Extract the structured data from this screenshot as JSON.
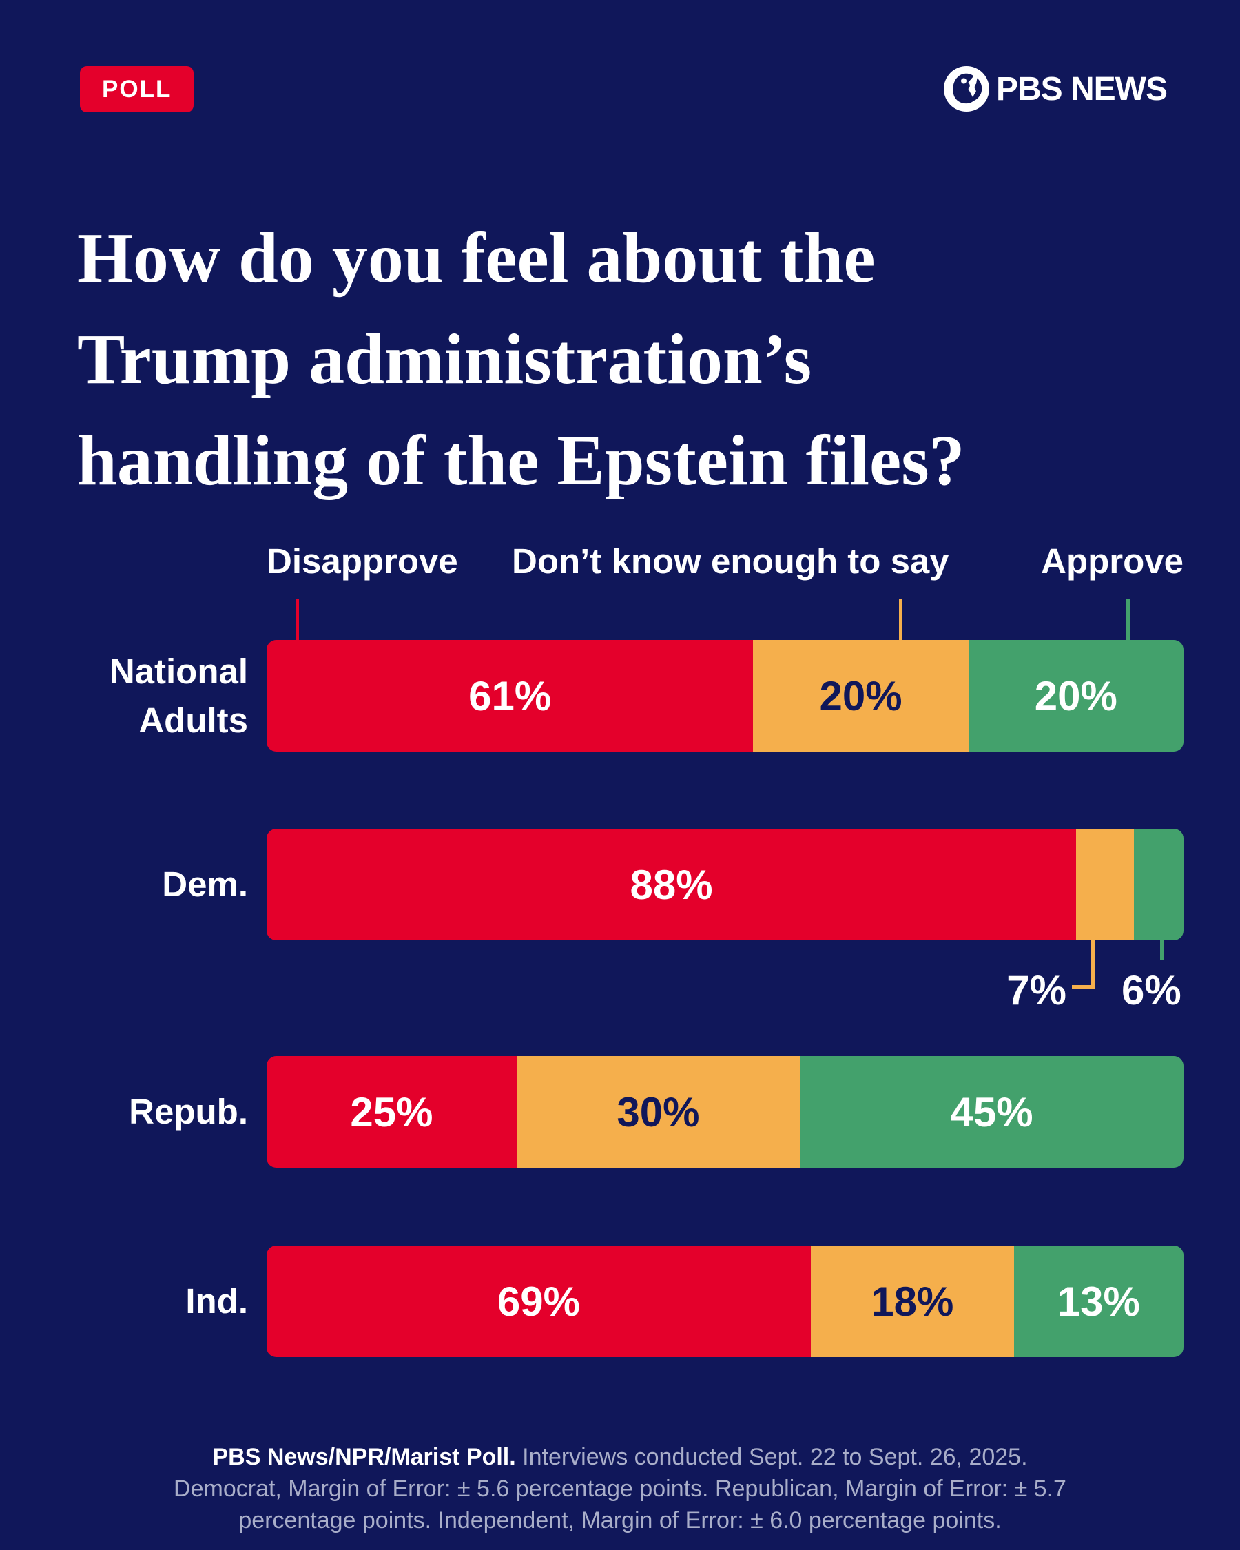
{
  "badge": {
    "label": "POLL",
    "color": "#E4002B"
  },
  "brand": {
    "name": "PBS NEWS"
  },
  "title_lines": [
    "How do you feel about the",
    "Trump administration’s",
    "handling of the Epstein files?"
  ],
  "colors": {
    "background": "#10175A",
    "disapprove_red": "#E4002B",
    "dontknow_orange": "#F5AF4C",
    "approve_green": "#43A16C",
    "text_white": "#FFFFFF",
    "text_navy": "#10175A",
    "footer_muted": "#A9AEC9"
  },
  "legend": [
    {
      "label": "Disapprove",
      "color": "#E4002B"
    },
    {
      "label": "Don’t know enough to say",
      "color": "#F5AF4C"
    },
    {
      "label": "Approve",
      "color": "#43A16C"
    }
  ],
  "chart_data": {
    "type": "bar",
    "orientation": "horizontal-stacked",
    "title": "How do you feel about the Trump administration’s handling of the Epstein files?",
    "categories": [
      "National Adults",
      "Dem.",
      "Repub.",
      "Ind."
    ],
    "series": [
      {
        "name": "Disapprove",
        "color": "#E4002B",
        "label_color": "#FFFFFF",
        "values": [
          61,
          88,
          25,
          69
        ]
      },
      {
        "name": "Don’t know enough to say",
        "color": "#F5AF4C",
        "label_color": "#10175A",
        "values": [
          20,
          7,
          30,
          18
        ]
      },
      {
        "name": "Approve",
        "color": "#43A16C",
        "label_color": "#FFFFFF",
        "values": [
          20,
          6,
          45,
          13
        ]
      }
    ],
    "value_format": "percent",
    "xlim": [
      0,
      100
    ],
    "legend_position": "top",
    "grid": false
  },
  "callouts": [
    {
      "category": "Dem.",
      "series": "Don’t know enough to say",
      "label": "7%"
    },
    {
      "category": "Dem.",
      "series": "Approve",
      "label": "6%"
    }
  ],
  "footer": {
    "bold": "PBS News/NPR/Marist Poll.",
    "line1_rest": " Interviews conducted Sept. 22 to Sept. 26, 2025.",
    "line2": "Democrat, Margin of Error: ± 5.6 percentage points. Republican, Margin of Error: ± 5.7",
    "line3": "percentage points. Independent, Margin of Error: ± 6.0 percentage points."
  }
}
